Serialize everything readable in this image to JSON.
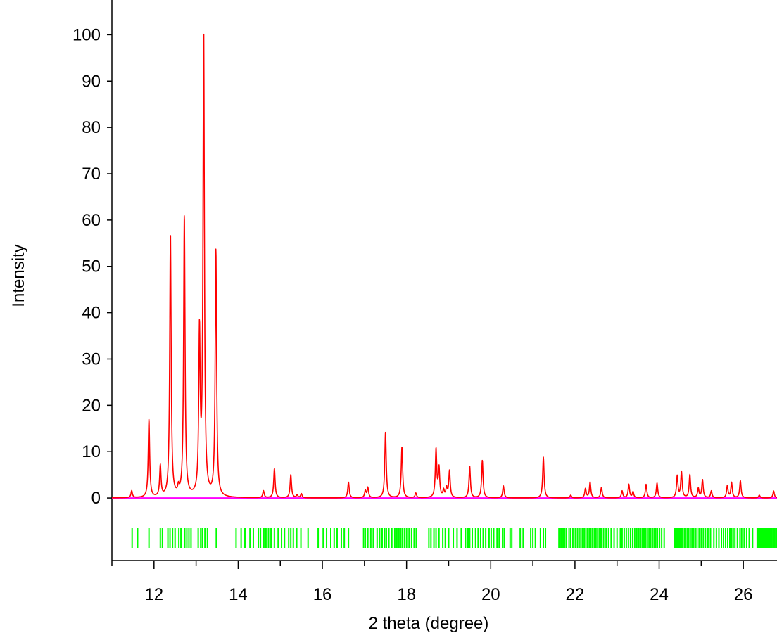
{
  "chart_data": {
    "type": "line",
    "title": "",
    "xlabel": "2 theta (degree)",
    "ylabel": "Intensity",
    "xlim": [
      11.0,
      26.8
    ],
    "ylim": [
      -13.5,
      107.5
    ],
    "x_ticks_major": [
      12,
      14,
      16,
      18,
      20,
      22,
      24,
      26
    ],
    "x_tick_labels": [
      "12",
      "14",
      "16",
      "18",
      "20",
      "22",
      "24",
      "26"
    ],
    "y_ticks": [
      0,
      10,
      20,
      30,
      40,
      50,
      60,
      70,
      80,
      90,
      100
    ],
    "y_tick_labels": [
      "0",
      "10",
      "20",
      "30",
      "40",
      "50",
      "60",
      "70",
      "80",
      "90",
      "100"
    ],
    "grid": false,
    "legend": "none",
    "series": [
      {
        "kind": "profile",
        "color": "#ff0000",
        "peaks": [
          {
            "x": 11.47,
            "y": 1.5
          },
          {
            "x": 11.88,
            "y": 16.8
          },
          {
            "x": 12.15,
            "y": 6.7
          },
          {
            "x": 12.39,
            "y": 57.0
          },
          {
            "x": 12.58,
            "y": 1.5
          },
          {
            "x": 12.72,
            "y": 60.8
          },
          {
            "x": 13.08,
            "y": 34.5
          },
          {
            "x": 13.18,
            "y": 99.8
          },
          {
            "x": 13.47,
            "y": 53.3
          },
          {
            "x": 14.6,
            "y": 1.5
          },
          {
            "x": 14.86,
            "y": 6.3
          },
          {
            "x": 15.25,
            "y": 5.0
          },
          {
            "x": 15.4,
            "y": 0.6
          },
          {
            "x": 15.5,
            "y": 0.9
          },
          {
            "x": 16.62,
            "y": 3.4
          },
          {
            "x": 17.02,
            "y": 1.5
          },
          {
            "x": 17.08,
            "y": 2.2
          },
          {
            "x": 17.5,
            "y": 14.3
          },
          {
            "x": 17.89,
            "y": 11.0
          },
          {
            "x": 18.22,
            "y": 1.0
          },
          {
            "x": 18.7,
            "y": 10.4
          },
          {
            "x": 18.77,
            "y": 6.3
          },
          {
            "x": 18.88,
            "y": 1.5
          },
          {
            "x": 18.95,
            "y": 2.0
          },
          {
            "x": 19.02,
            "y": 5.8
          },
          {
            "x": 19.5,
            "y": 6.8
          },
          {
            "x": 19.8,
            "y": 8.1
          },
          {
            "x": 20.3,
            "y": 2.6
          },
          {
            "x": 21.25,
            "y": 8.8
          },
          {
            "x": 21.9,
            "y": 0.6
          },
          {
            "x": 22.25,
            "y": 2.0
          },
          {
            "x": 22.36,
            "y": 3.4
          },
          {
            "x": 22.63,
            "y": 2.3
          },
          {
            "x": 23.12,
            "y": 1.5
          },
          {
            "x": 23.28,
            "y": 2.9
          },
          {
            "x": 23.38,
            "y": 1.3
          },
          {
            "x": 23.69,
            "y": 2.9
          },
          {
            "x": 23.95,
            "y": 3.2
          },
          {
            "x": 24.43,
            "y": 4.7
          },
          {
            "x": 24.53,
            "y": 5.6
          },
          {
            "x": 24.73,
            "y": 5.0
          },
          {
            "x": 24.93,
            "y": 2.0
          },
          {
            "x": 25.03,
            "y": 3.9
          },
          {
            "x": 25.24,
            "y": 1.5
          },
          {
            "x": 25.62,
            "y": 2.6
          },
          {
            "x": 25.72,
            "y": 3.3
          },
          {
            "x": 25.93,
            "y": 3.7
          },
          {
            "x": 26.38,
            "y": 0.6
          },
          {
            "x": 26.72,
            "y": 1.5
          }
        ]
      },
      {
        "kind": "baseline",
        "color": "#ff00ff",
        "x": [
          11.0,
          26.8
        ],
        "y": [
          0,
          0
        ]
      },
      {
        "kind": "reflection_markers",
        "color": "#00ff00",
        "x": [
          11.48,
          11.61,
          11.88,
          12.15,
          12.2,
          12.33,
          12.38,
          12.44,
          12.5,
          12.59,
          12.64,
          12.73,
          12.78,
          12.83,
          12.88,
          13.05,
          13.11,
          13.15,
          13.21,
          13.27,
          13.48,
          13.95,
          14.07,
          14.16,
          14.28,
          14.36,
          14.48,
          14.53,
          14.61,
          14.66,
          14.72,
          14.78,
          14.86,
          14.95,
          15.03,
          15.1,
          15.2,
          15.25,
          15.31,
          15.39,
          15.49,
          15.66,
          15.9,
          16.02,
          16.1,
          16.2,
          16.28,
          16.35,
          16.45,
          16.52,
          16.62,
          16.98,
          17.02,
          17.08,
          17.15,
          17.21,
          17.3,
          17.36,
          17.42,
          17.48,
          17.52,
          17.58,
          17.65,
          17.72,
          17.77,
          17.82,
          17.86,
          17.9,
          17.95,
          18.0,
          18.06,
          18.12,
          18.18,
          18.23,
          18.53,
          18.58,
          18.65,
          18.7,
          18.77,
          18.86,
          18.92,
          19.0,
          19.11,
          19.2,
          19.3,
          19.4,
          19.46,
          19.5,
          19.56,
          19.64,
          19.7,
          19.76,
          19.82,
          19.88,
          19.96,
          20.01,
          20.07,
          20.15,
          20.2,
          20.28,
          20.32,
          20.46,
          20.5,
          20.7,
          20.77,
          20.95,
          21.0,
          21.06,
          21.18,
          21.25,
          21.3,
          21.62,
          21.64,
          21.67,
          21.7,
          21.73,
          21.76,
          21.8,
          21.86,
          21.9,
          21.95,
          22.01,
          22.06,
          22.1,
          22.14,
          22.18,
          22.22,
          22.26,
          22.3,
          22.34,
          22.38,
          22.42,
          22.46,
          22.5,
          22.54,
          22.58,
          22.62,
          22.68,
          22.74,
          22.8,
          22.86,
          22.93,
          23.0,
          23.08,
          23.12,
          23.17,
          23.22,
          23.27,
          23.32,
          23.37,
          23.42,
          23.47,
          23.52,
          23.56,
          23.6,
          23.64,
          23.68,
          23.72,
          23.76,
          23.8,
          23.84,
          23.88,
          23.92,
          23.96,
          24.01,
          24.06,
          24.12,
          24.37,
          24.39,
          24.41,
          24.43,
          24.45,
          24.47,
          24.49,
          24.51,
          24.53,
          24.56,
          24.6,
          24.63,
          24.67,
          24.7,
          24.74,
          24.78,
          24.82,
          24.86,
          24.9,
          24.95,
          25.0,
          25.05,
          25.1,
          25.16,
          25.22,
          25.3,
          25.36,
          25.42,
          25.48,
          25.53,
          25.58,
          25.63,
          25.68,
          25.72,
          25.76,
          25.8,
          25.86,
          25.92,
          25.96,
          26.02,
          26.08,
          26.14,
          26.22,
          26.33,
          26.35,
          26.37,
          26.39,
          26.41,
          26.43,
          26.45,
          26.47,
          26.49,
          26.51,
          26.53,
          26.55,
          26.57,
          26.59,
          26.61,
          26.63,
          26.65,
          26.68,
          26.71,
          26.74,
          26.77,
          26.8
        ]
      }
    ]
  }
}
